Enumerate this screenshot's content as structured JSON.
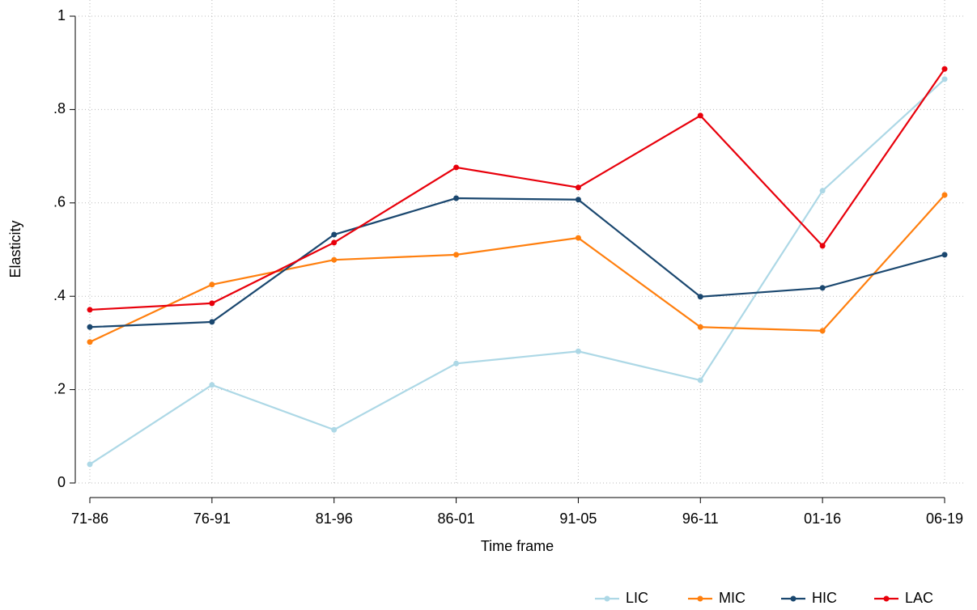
{
  "chart_data": {
    "type": "line",
    "x_label": "Time frame",
    "y_label": "Elasticity",
    "categories": [
      "71-86",
      "76-91",
      "81-96",
      "86-01",
      "91-05",
      "96-11",
      "01-16",
      "06-19"
    ],
    "series": [
      {
        "name": "LIC",
        "color": "#add8e6",
        "values": [
          0.04,
          0.21,
          0.114,
          0.256,
          0.282,
          0.22,
          0.626,
          0.865
        ]
      },
      {
        "name": "MIC",
        "color": "#ff7f0e",
        "values": [
          0.302,
          0.425,
          0.478,
          0.489,
          0.525,
          0.334,
          0.326,
          0.617
        ]
      },
      {
        "name": "HIC",
        "color": "#1a476f",
        "values": [
          0.334,
          0.345,
          0.532,
          0.61,
          0.607,
          0.399,
          0.418,
          0.489
        ]
      },
      {
        "name": "LAC",
        "color": "#e8000b",
        "values": [
          0.371,
          0.385,
          0.515,
          0.676,
          0.633,
          0.787,
          0.508,
          0.887
        ]
      }
    ],
    "ylim": [
      0,
      1
    ],
    "yticks": [
      0,
      {
        "value": 0.2,
        "label": ".2"
      },
      {
        "value": 0.4,
        "label": ".4"
      },
      {
        "value": 0.6,
        "label": ".6"
      },
      {
        "value": 0.8,
        "label": ".8"
      },
      1
    ],
    "grid": true,
    "legend": "bottom-right"
  }
}
